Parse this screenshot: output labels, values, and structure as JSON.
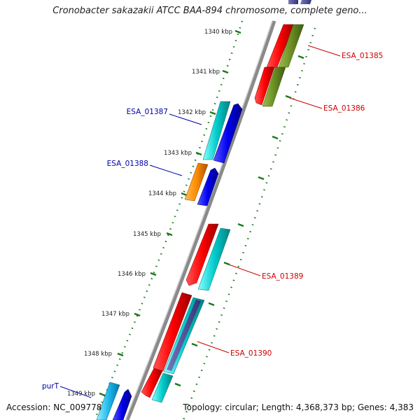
{
  "header": {
    "title": "Cronobacter sakazakii ATCC BAA-894 chromosome, complete geno..."
  },
  "footer": {
    "accession": "Accession: NC_009778",
    "topology": "Topology: circular; Length: 4,368,373 bp; Genes: 4,383"
  },
  "scale": {
    "ticks": [
      "1340 kbp",
      "1341 kbp",
      "1342 kbp",
      "1343 kbp",
      "1344 kbp",
      "1345 kbp",
      "1346 kbp",
      "1347 kbp",
      "1348 kbp",
      "1349 kbp"
    ]
  },
  "genes": [
    {
      "label": "ESA_01385",
      "color": "#cc0000"
    },
    {
      "label": "ESA_01386",
      "color": "#cc0000"
    },
    {
      "label": "ESA_01387",
      "color": "#0000aa"
    },
    {
      "label": "ESA_01388",
      "color": "#0000aa"
    },
    {
      "label": "ESA_01389",
      "color": "#cc0000"
    },
    {
      "label": "ESA_01390",
      "color": "#cc0000"
    },
    {
      "label": "purT",
      "color": "#0000aa"
    }
  ],
  "colors": {
    "red_feature": "#ff0000",
    "olive_feature": "#6b8e23",
    "cyan_feature": "#00cccc",
    "blue_feature": "#0000ee",
    "orange_feature": "#ff8c00",
    "tick_green": "#1a7a1a",
    "backbone": "#8a8a8a"
  }
}
